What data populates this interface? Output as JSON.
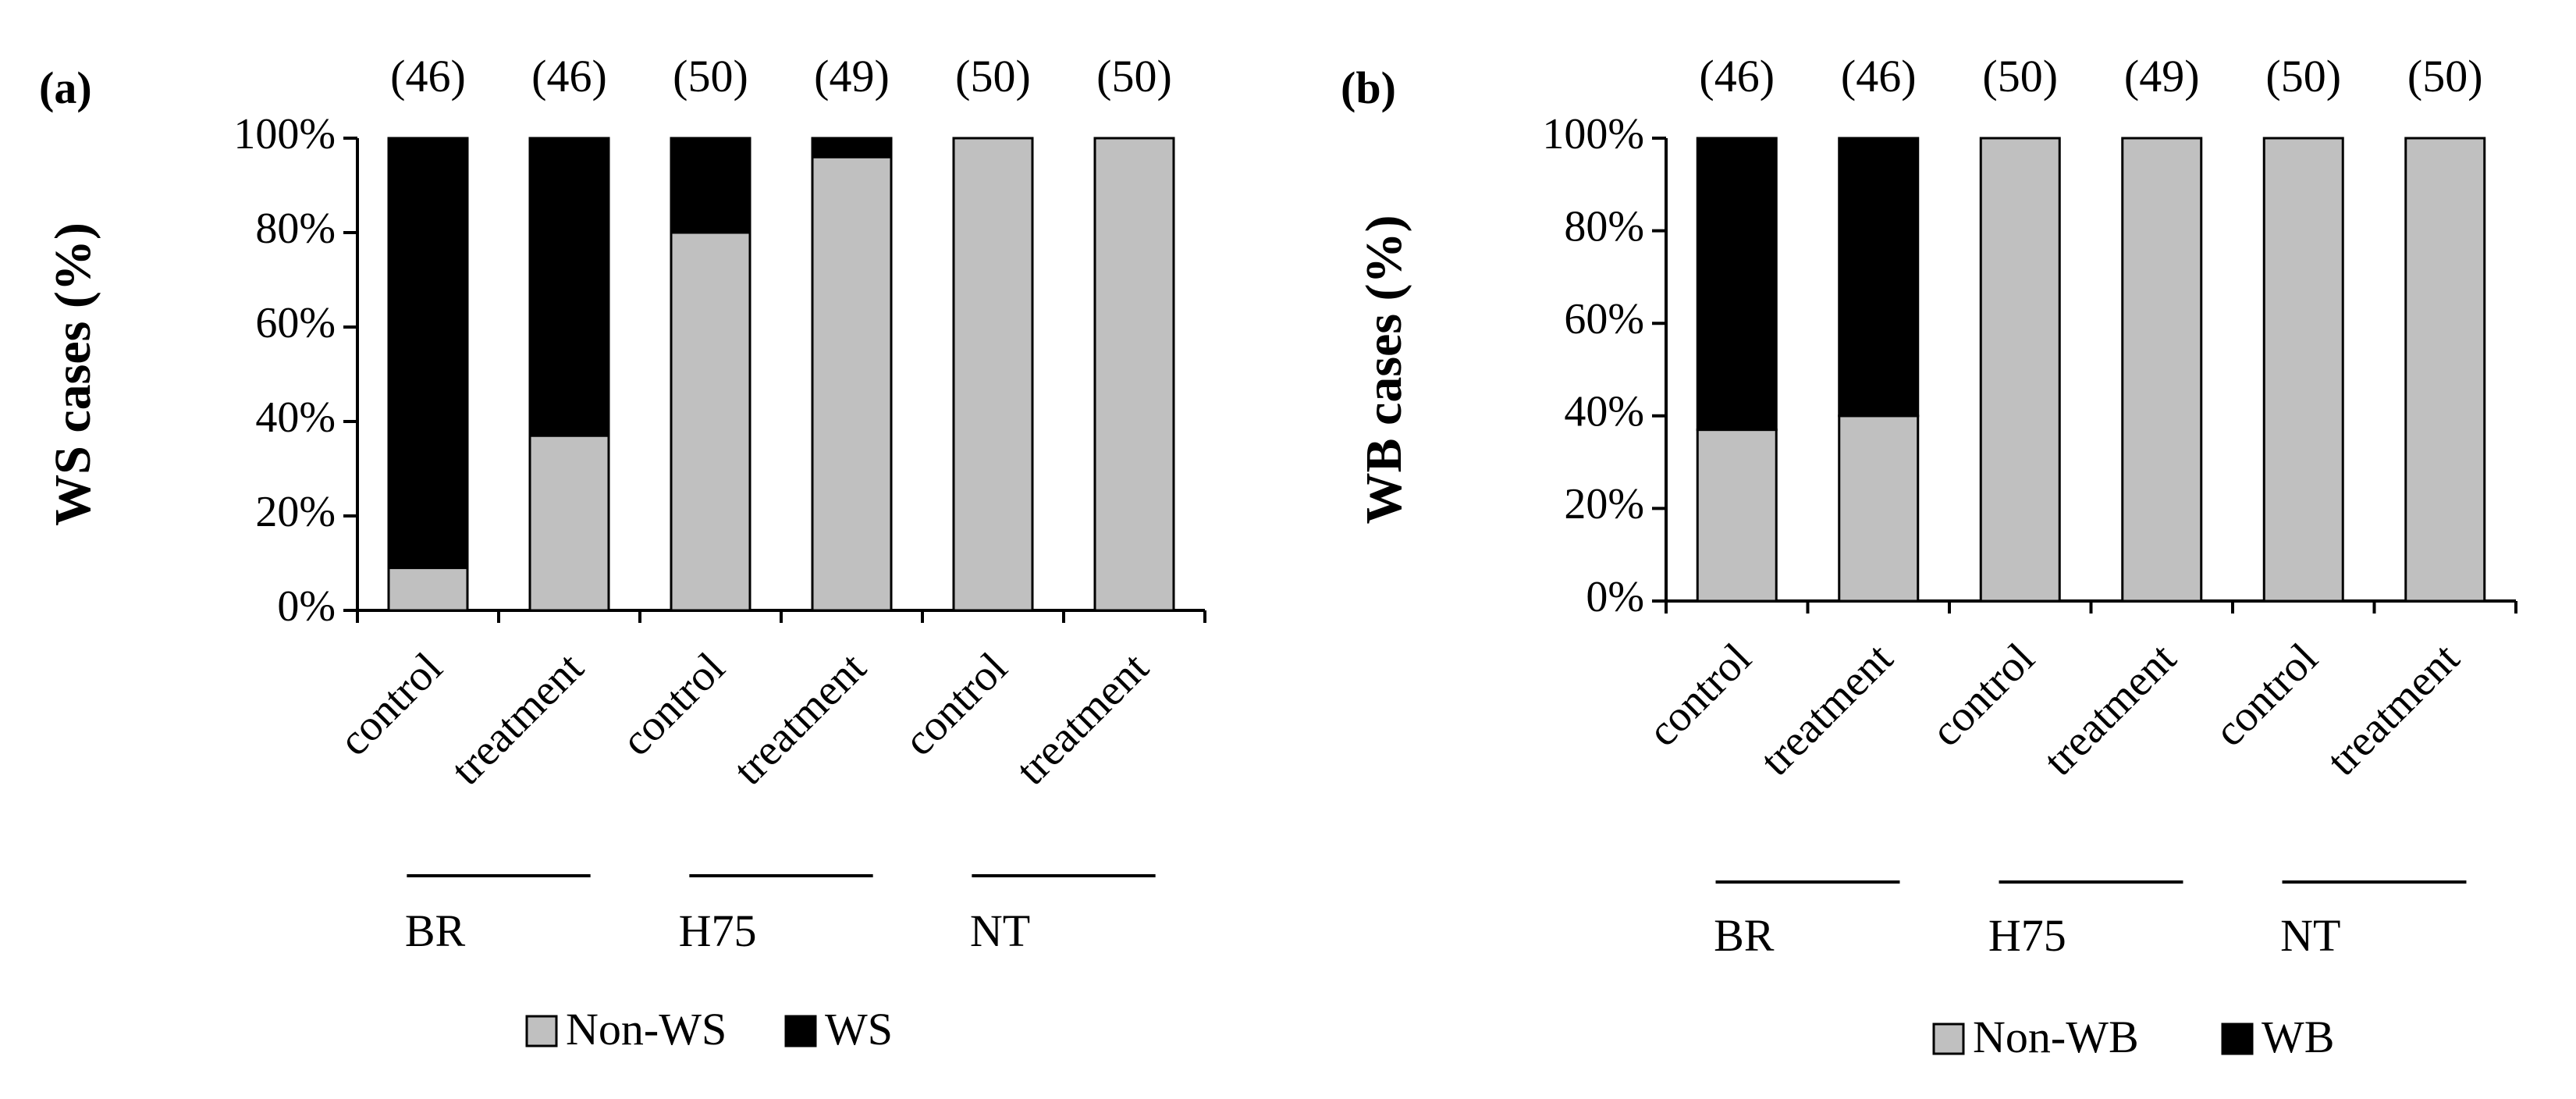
{
  "chart_data": [
    {
      "type": "bar",
      "stacked": true,
      "panel_label": "(a)",
      "ylabel": "WS cases (%)",
      "ylim": [
        0,
        100
      ],
      "yticks": [
        "0%",
        "20%",
        "40%",
        "60%",
        "80%",
        "100%"
      ],
      "ytick_values": [
        0,
        20,
        40,
        60,
        80,
        100
      ],
      "categories": [
        "control",
        "treatment",
        "control",
        "treatment",
        "control",
        "treatment"
      ],
      "groups": [
        {
          "label": "BR",
          "span": [
            0,
            1
          ]
        },
        {
          "label": "H75",
          "span": [
            2,
            3
          ]
        },
        {
          "label": "NT",
          "span": [
            4,
            5
          ]
        }
      ],
      "counts": [
        "(46)",
        "(46)",
        "(50)",
        "(49)",
        "(50)",
        "(50)"
      ],
      "series": [
        {
          "name": "Non-WS",
          "color": "#c0c0c0",
          "values": [
            9,
            37,
            80,
            96,
            100,
            100
          ]
        },
        {
          "name": "WS",
          "color": "#000000",
          "values": [
            91,
            63,
            20,
            4,
            0,
            0
          ]
        }
      ],
      "legend": [
        "Non-WS",
        "WS"
      ]
    },
    {
      "type": "bar",
      "stacked": true,
      "panel_label": "(b)",
      "ylabel": "WB cases (%)",
      "ylim": [
        0,
        100
      ],
      "yticks": [
        "0%",
        "20%",
        "40%",
        "60%",
        "80%",
        "100%"
      ],
      "ytick_values": [
        0,
        20,
        40,
        60,
        80,
        100
      ],
      "categories": [
        "control",
        "treatment",
        "control",
        "treatment",
        "control",
        "treatment"
      ],
      "groups": [
        {
          "label": "BR",
          "span": [
            0,
            1
          ]
        },
        {
          "label": "H75",
          "span": [
            2,
            3
          ]
        },
        {
          "label": "NT",
          "span": [
            4,
            5
          ]
        }
      ],
      "counts": [
        "(46)",
        "(46)",
        "(50)",
        "(49)",
        "(50)",
        "(50)"
      ],
      "series": [
        {
          "name": "Non-WB",
          "color": "#c0c0c0",
          "values": [
            37,
            40,
            100,
            100,
            100,
            100
          ]
        },
        {
          "name": "WB",
          "color": "#000000",
          "values": [
            63,
            60,
            0,
            0,
            0,
            0
          ]
        }
      ],
      "legend": [
        "Non-WB",
        "WB"
      ]
    }
  ]
}
